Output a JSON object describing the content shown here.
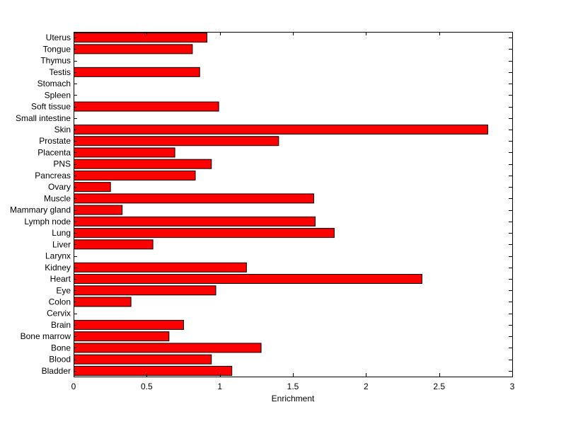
{
  "chart_data": {
    "type": "bar",
    "orientation": "horizontal",
    "title": "",
    "xlabel": "Enrichment",
    "ylabel": "",
    "xlim": [
      0,
      3
    ],
    "xticks": [
      "0",
      "0.5",
      "1",
      "1.5",
      "2",
      "2.5",
      "3"
    ],
    "grid": false,
    "legend": "none",
    "bar_color": "#ff0000",
    "categories": [
      "Bladder",
      "Blood",
      "Bone",
      "Bone marrow",
      "Brain",
      "Cervix",
      "Colon",
      "Eye",
      "Heart",
      "Kidney",
      "Larynx",
      "Liver",
      "Lung",
      "Lymph node",
      "Mammary gland",
      "Muscle",
      "Ovary",
      "Pancreas",
      "PNS",
      "Placenta",
      "Prostate",
      "Skin",
      "Small intestine",
      "Soft tissue",
      "Spleen",
      "Stomach",
      "Testis",
      "Thymus",
      "Tongue",
      "Uterus"
    ],
    "values": [
      1.08,
      0.94,
      1.28,
      0.65,
      0.75,
      0,
      0.39,
      0.97,
      2.38,
      1.18,
      0,
      0.54,
      1.78,
      1.65,
      0.33,
      1.64,
      0.25,
      0.83,
      0.94,
      0.69,
      1.4,
      2.83,
      0,
      0.99,
      0,
      0,
      0.86,
      0,
      0.81,
      0.91
    ]
  }
}
